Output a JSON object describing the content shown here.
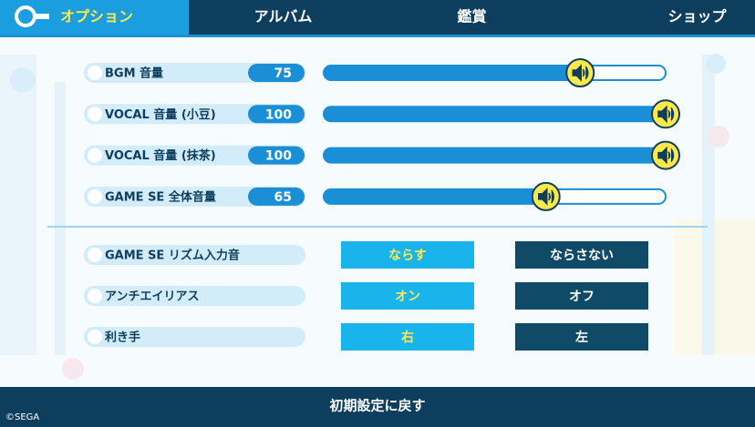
{
  "tabs": [
    {
      "label": "オプション",
      "active": true
    },
    {
      "label": "アルバム",
      "active": false
    },
    {
      "label": "鑑賞",
      "active": false
    },
    {
      "label": "ショップ",
      "active": false
    }
  ],
  "volume": {
    "xlim": [
      0,
      100
    ],
    "rows": [
      {
        "label": "BGM 音量",
        "value": 75
      },
      {
        "label": "VOCAL 音量 (小豆)",
        "value": 100
      },
      {
        "label": "VOCAL 音量 (抹茶)",
        "value": 100
      },
      {
        "label": "GAME SE 全体音量",
        "value": 65
      }
    ]
  },
  "toggles": [
    {
      "label": "GAME SE リズム入力音",
      "options": [
        "ならす",
        "ならさない"
      ],
      "selected": 0
    },
    {
      "label": "アンチエイリアス",
      "options": [
        "オン",
        "オフ"
      ],
      "selected": 0
    },
    {
      "label": "利き手",
      "options": [
        "右",
        "左"
      ],
      "selected": 0
    }
  ],
  "footer": {
    "reset": "初期設定に戻す",
    "copyright": "©SEGA"
  }
}
